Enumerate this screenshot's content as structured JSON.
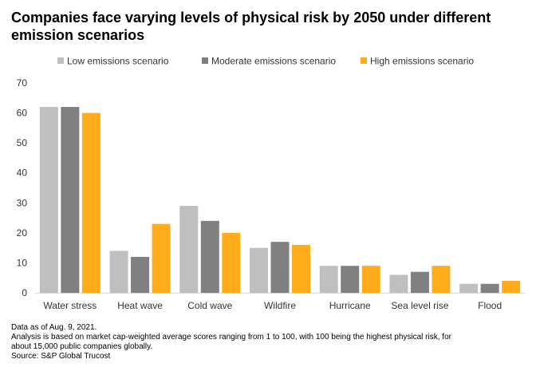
{
  "chart_data": {
    "type": "bar",
    "title_lines": [
      "Companies face varying levels of physical risk by 2050 under different",
      "emission scenarios"
    ],
    "categories": [
      "Water stress",
      "Heat wave",
      "Cold wave",
      "Wildfire",
      "Hurricane",
      "Sea level rise",
      "Flood"
    ],
    "series": [
      {
        "name": "Low emissions scenario",
        "color": "#bfbfbf",
        "values": [
          62,
          14,
          29,
          15,
          9,
          6,
          3
        ]
      },
      {
        "name": "Moderate emissions scenario",
        "color": "#808080",
        "values": [
          62,
          12,
          24,
          17,
          9,
          7,
          3
        ]
      },
      {
        "name": "High emissions scenario",
        "color": "#ffab1a",
        "values": [
          60,
          23,
          20,
          16,
          9,
          9,
          4
        ]
      }
    ],
    "ylim": [
      0,
      70
    ],
    "yticks": [
      "0",
      "10",
      "20",
      "30",
      "40",
      "50",
      "60",
      "70"
    ],
    "legend_position": "top",
    "grid": false
  },
  "notes": [
    "Data as of Aug. 9, 2021.",
    "Analysis is based on market cap-weighted average scores ranging from 1 to 100, with 100 being the highest physical risk, for",
    "about 15,000 public companies globally.",
    "Source: S&P Global Trucost"
  ]
}
